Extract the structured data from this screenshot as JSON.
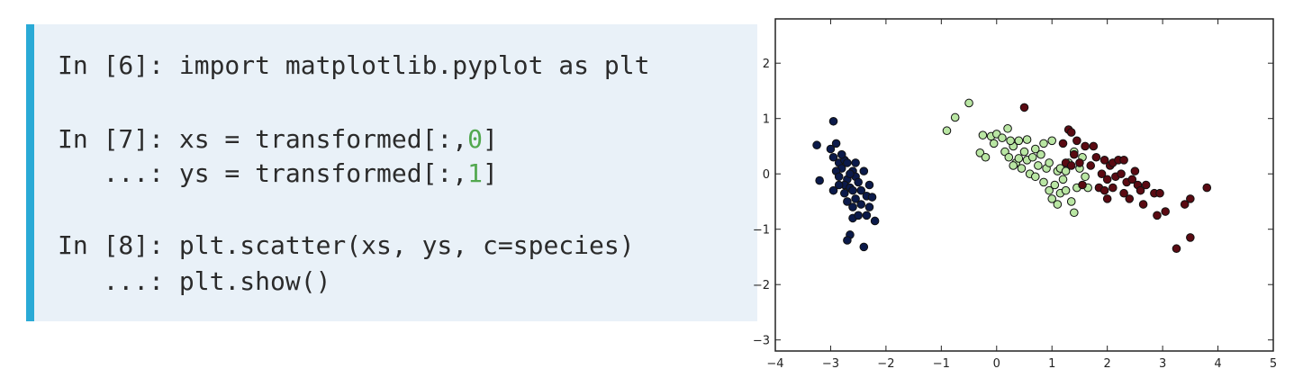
{
  "code": {
    "lines": [
      {
        "prefix": "In [6]: ",
        "text": "import matplotlib.pyplot as plt"
      },
      {
        "prefix": "In [7]: ",
        "text": "xs = transformed[:,",
        "num": "0",
        "suffix": "]"
      },
      {
        "prefix": "   ...: ",
        "text": "ys = transformed[:,",
        "num": "1",
        "suffix": "]"
      },
      {
        "prefix": "In [8]: ",
        "text": "plt.scatter(xs, ys, c=species)"
      },
      {
        "prefix": "   ...: ",
        "text": "plt.show()"
      }
    ]
  },
  "colors": {
    "accent": "#2aaad6",
    "panel": "#e9f1f8",
    "number": "#52a84f",
    "setosa": "#0b1a4a",
    "versicolor": "#b9e6a3",
    "virginica": "#5a0a12"
  },
  "chart_data": {
    "type": "scatter",
    "title": "",
    "xlabel": "",
    "ylabel": "",
    "xlim": [
      -4,
      5
    ],
    "ylim": [
      -3.2,
      2.8
    ],
    "xticks": [
      "-4",
      "-3",
      "-2",
      "-1",
      "0",
      "1",
      "2",
      "3",
      "4",
      "5"
    ],
    "yticks": [
      "-3",
      "-2",
      "-1",
      "0",
      "1",
      "2"
    ],
    "grid": false,
    "series": [
      {
        "color": "#0b1a4a",
        "points": [
          [
            -3.25,
            0.52
          ],
          [
            -3.2,
            -0.12
          ],
          [
            -2.95,
            0.95
          ],
          [
            -3.0,
            0.45
          ],
          [
            -2.9,
            0.55
          ],
          [
            -2.95,
            0.3
          ],
          [
            -2.85,
            0.2
          ],
          [
            -2.8,
            0.1
          ],
          [
            -2.75,
            0.25
          ],
          [
            -2.7,
            0.2
          ],
          [
            -2.9,
            0.05
          ],
          [
            -2.85,
            -0.05
          ],
          [
            -2.7,
            -0.1
          ],
          [
            -2.6,
            0.05
          ],
          [
            -2.55,
            -0.05
          ],
          [
            -2.75,
            -0.2
          ],
          [
            -2.65,
            -0.25
          ],
          [
            -2.6,
            -0.3
          ],
          [
            -2.5,
            -0.15
          ],
          [
            -2.45,
            -0.3
          ],
          [
            -2.55,
            -0.45
          ],
          [
            -2.7,
            -0.5
          ],
          [
            -2.6,
            -0.6
          ],
          [
            -2.45,
            -0.55
          ],
          [
            -2.35,
            -0.4
          ],
          [
            -2.3,
            -0.6
          ],
          [
            -2.25,
            -0.42
          ],
          [
            -2.35,
            -0.75
          ],
          [
            -2.6,
            -0.8
          ],
          [
            -2.2,
            -0.85
          ],
          [
            -2.65,
            -1.1
          ],
          [
            -2.7,
            -1.2
          ],
          [
            -2.4,
            -1.32
          ],
          [
            -2.8,
            0.35
          ],
          [
            -2.85,
            -0.2
          ],
          [
            -2.65,
            0.0
          ],
          [
            -2.4,
            0.05
          ],
          [
            -2.55,
            0.2
          ],
          [
            -2.95,
            -0.3
          ],
          [
            -2.5,
            -0.75
          ],
          [
            -2.75,
            -0.35
          ],
          [
            -2.3,
            -0.2
          ]
        ]
      },
      {
        "color": "#b9e6a3",
        "points": [
          [
            -0.9,
            0.78
          ],
          [
            -0.75,
            1.02
          ],
          [
            -0.5,
            1.28
          ],
          [
            -0.3,
            0.38
          ],
          [
            -0.25,
            0.7
          ],
          [
            -0.2,
            0.3
          ],
          [
            -0.1,
            0.68
          ],
          [
            -0.05,
            0.55
          ],
          [
            0.0,
            0.72
          ],
          [
            0.1,
            0.65
          ],
          [
            0.15,
            0.4
          ],
          [
            0.2,
            0.82
          ],
          [
            0.22,
            0.3
          ],
          [
            0.3,
            0.5
          ],
          [
            0.35,
            0.2
          ],
          [
            0.4,
            0.6
          ],
          [
            0.45,
            0.1
          ],
          [
            0.5,
            0.4
          ],
          [
            0.55,
            0.25
          ],
          [
            0.6,
            0.0
          ],
          [
            0.65,
            0.3
          ],
          [
            0.7,
            -0.05
          ],
          [
            0.75,
            0.15
          ],
          [
            0.8,
            0.35
          ],
          [
            0.85,
            -0.15
          ],
          [
            0.9,
            0.1
          ],
          [
            0.95,
            -0.3
          ],
          [
            1.0,
            -0.45
          ],
          [
            1.05,
            -0.2
          ],
          [
            1.1,
            0.05
          ],
          [
            1.15,
            -0.35
          ],
          [
            1.2,
            -0.1
          ],
          [
            1.25,
            -0.3
          ],
          [
            1.3,
            0.2
          ],
          [
            1.35,
            -0.5
          ],
          [
            1.4,
            -0.7
          ],
          [
            1.45,
            -0.25
          ],
          [
            1.5,
            0.1
          ],
          [
            1.55,
            0.3
          ],
          [
            1.0,
            0.6
          ],
          [
            0.25,
            0.6
          ],
          [
            0.4,
            0.28
          ],
          [
            0.7,
            0.45
          ],
          [
            1.15,
            0.1
          ],
          [
            0.95,
            0.2
          ],
          [
            1.4,
            0.4
          ],
          [
            1.6,
            -0.05
          ],
          [
            1.65,
            -0.25
          ],
          [
            0.55,
            0.62
          ],
          [
            0.85,
            0.55
          ],
          [
            0.3,
            0.15
          ],
          [
            1.1,
            -0.55
          ],
          [
            1.25,
            0.05
          ]
        ]
      },
      {
        "color": "#5a0a12",
        "points": [
          [
            0.5,
            1.2
          ],
          [
            1.3,
            0.8
          ],
          [
            1.35,
            0.75
          ],
          [
            1.2,
            0.55
          ],
          [
            1.45,
            0.6
          ],
          [
            1.6,
            0.5
          ],
          [
            1.75,
            0.5
          ],
          [
            1.25,
            0.2
          ],
          [
            1.35,
            0.15
          ],
          [
            1.5,
            0.2
          ],
          [
            1.7,
            0.15
          ],
          [
            1.8,
            0.3
          ],
          [
            1.95,
            0.25
          ],
          [
            2.05,
            0.15
          ],
          [
            2.1,
            0.2
          ],
          [
            2.2,
            0.25
          ],
          [
            2.3,
            0.25
          ],
          [
            1.9,
            0.0
          ],
          [
            2.0,
            -0.1
          ],
          [
            2.15,
            -0.05
          ],
          [
            2.25,
            0.0
          ],
          [
            2.35,
            -0.15
          ],
          [
            2.45,
            -0.1
          ],
          [
            2.5,
            0.05
          ],
          [
            2.55,
            -0.2
          ],
          [
            2.6,
            -0.3
          ],
          [
            2.7,
            -0.2
          ],
          [
            2.85,
            -0.35
          ],
          [
            2.95,
            -0.35
          ],
          [
            1.85,
            -0.25
          ],
          [
            1.95,
            -0.3
          ],
          [
            2.1,
            -0.25
          ],
          [
            2.3,
            -0.35
          ],
          [
            2.4,
            -0.45
          ],
          [
            2.65,
            -0.55
          ],
          [
            2.9,
            -0.75
          ],
          [
            3.05,
            -0.68
          ],
          [
            3.4,
            -0.55
          ],
          [
            3.5,
            -0.45
          ],
          [
            3.8,
            -0.25
          ],
          [
            3.25,
            -1.35
          ],
          [
            3.5,
            -1.15
          ],
          [
            1.55,
            -0.2
          ],
          [
            2.0,
            -0.45
          ],
          [
            1.4,
            0.35
          ]
        ]
      }
    ]
  }
}
